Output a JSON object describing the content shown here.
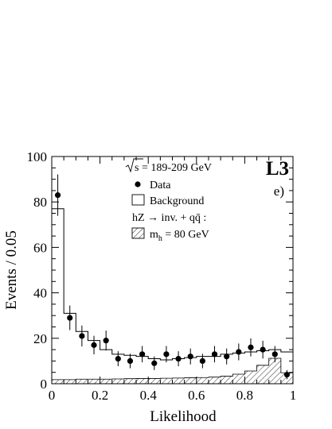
{
  "chart_data": {
    "type": "histogram",
    "xlabel": "Likelihood",
    "ylabel": "Events / 0.05",
    "xlim": [
      0,
      1
    ],
    "ylim": [
      0,
      100
    ],
    "x_ticks": [
      0,
      0.2,
      0.4,
      0.6,
      0.8,
      1
    ],
    "x_tick_labels": [
      "0",
      "0.2",
      "0.4",
      "0.6",
      "0.8",
      "1"
    ],
    "y_ticks": [
      0,
      20,
      40,
      60,
      80,
      100
    ],
    "y_tick_labels": [
      "0",
      "20",
      "40",
      "60",
      "80",
      "100"
    ],
    "bin_edges": [
      0,
      0.05,
      0.1,
      0.15,
      0.2,
      0.25,
      0.3,
      0.35,
      0.4,
      0.45,
      0.5,
      0.55,
      0.6,
      0.65,
      0.7,
      0.75,
      0.8,
      0.85,
      0.9,
      0.95,
      1.0
    ],
    "data": {
      "name": "Data",
      "x": [
        0.025,
        0.075,
        0.125,
        0.175,
        0.225,
        0.275,
        0.325,
        0.375,
        0.425,
        0.475,
        0.525,
        0.575,
        0.625,
        0.675,
        0.725,
        0.775,
        0.825,
        0.875,
        0.925,
        0.975
      ],
      "y": [
        83,
        29,
        21,
        17,
        19,
        11,
        10,
        13,
        9,
        13,
        11,
        12,
        10,
        13,
        12,
        14,
        16,
        15,
        13,
        4
      ],
      "err": [
        9.1,
        5.4,
        4.6,
        4.1,
        4.4,
        3.3,
        3.2,
        3.6,
        3.0,
        3.6,
        3.3,
        3.5,
        3.2,
        3.6,
        3.5,
        3.7,
        4.0,
        3.9,
        3.6,
        2.0
      ]
    },
    "background": {
      "name": "Background",
      "values": [
        77,
        31,
        23,
        19,
        15,
        13,
        12.5,
        12,
        11,
        10.5,
        11,
        11.5,
        12,
        12,
        13,
        13.5,
        14,
        14.5,
        15,
        14
      ]
    },
    "signal": {
      "name": "m_h = 80 GeV",
      "values": [
        1.8,
        1.8,
        2.0,
        2.0,
        2.0,
        2.1,
        2.2,
        2.3,
        2.3,
        2.4,
        2.5,
        2.6,
        2.7,
        2.9,
        3.3,
        4.2,
        5.6,
        8.1,
        11.2,
        4.8
      ]
    }
  },
  "legend": {
    "energy_text": "s = 189-209 GeV",
    "data_label": "Data",
    "background_label": "Background",
    "signal_process": "hZ → inv. + qq̄ :",
    "signal_label_m": "m",
    "signal_label_sub": "h",
    "signal_label_rest": " = 80 GeV"
  },
  "experiment_tag": "L3",
  "panel_tag": "e)"
}
